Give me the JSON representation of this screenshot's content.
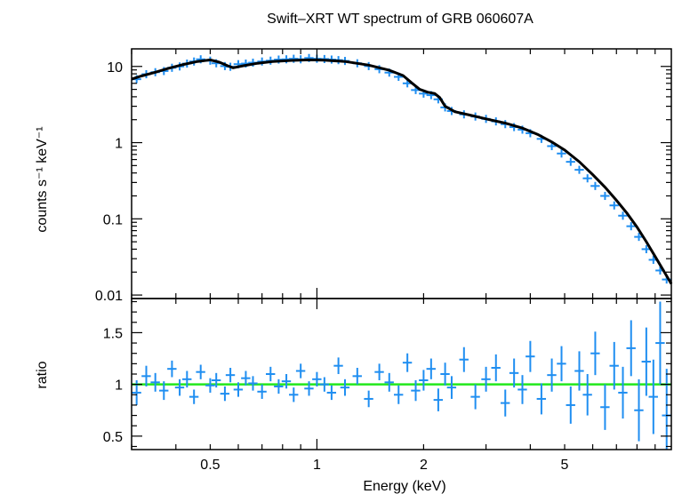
{
  "title": "Swift–XRT WT spectrum of GRB 060607A",
  "colors": {
    "data": "#1f8ef1",
    "model": "#000000",
    "ratio_line": "#22e81c",
    "axes": "#000000"
  },
  "chart_data": [
    {
      "type": "scatter",
      "panel": "spectrum",
      "title": "Swift–XRT WT spectrum of GRB 060607A",
      "xlabel": "",
      "ylabel": "counts s⁻¹ keV⁻¹",
      "xscale": "log",
      "yscale": "log",
      "xlim": [
        0.3,
        10
      ],
      "ylim": [
        0.009,
        17
      ],
      "yticks": [
        {
          "value": 10,
          "label": "10"
        },
        {
          "value": 1,
          "label": "1"
        },
        {
          "value": 0.1,
          "label": "0.1"
        },
        {
          "value": 0.01,
          "label": "0.01"
        }
      ],
      "series": [
        {
          "kind": "data",
          "x": [
            0.31,
            0.33,
            0.35,
            0.37,
            0.39,
            0.41,
            0.43,
            0.45,
            0.47,
            0.5,
            0.52,
            0.55,
            0.57,
            0.6,
            0.63,
            0.66,
            0.7,
            0.74,
            0.78,
            0.82,
            0.86,
            0.9,
            0.95,
            1.0,
            1.05,
            1.1,
            1.15,
            1.2,
            1.3,
            1.4,
            1.5,
            1.6,
            1.7,
            1.8,
            1.9,
            2.0,
            2.1,
            2.2,
            2.3,
            2.4,
            2.6,
            2.8,
            3.0,
            3.2,
            3.4,
            3.6,
            3.8,
            4.0,
            4.3,
            4.6,
            4.9,
            5.2,
            5.5,
            5.8,
            6.1,
            6.5,
            6.9,
            7.3,
            7.7,
            8.1,
            8.5,
            8.9,
            9.3,
            9.7
          ],
          "y": [
            6.8,
            7.9,
            8.4,
            8.7,
            9.6,
            10.0,
            10.9,
            11.6,
            12.4,
            11.9,
            11.0,
            10.1,
            9.9,
            10.7,
            10.9,
            11.2,
            11.6,
            11.9,
            12.3,
            12.4,
            12.6,
            12.4,
            12.9,
            12.6,
            12.5,
            12.3,
            12.1,
            11.8,
            11.0,
            10.1,
            9.2,
            8.3,
            7.3,
            6.0,
            4.9,
            4.4,
            4.2,
            3.7,
            2.9,
            2.6,
            2.35,
            2.2,
            2.05,
            1.9,
            1.75,
            1.6,
            1.48,
            1.33,
            1.12,
            0.9,
            0.72,
            0.56,
            0.44,
            0.34,
            0.27,
            0.2,
            0.15,
            0.11,
            0.08,
            0.058,
            0.04,
            0.029,
            0.021,
            0.016
          ]
        },
        {
          "kind": "model",
          "x": [
            0.3,
            0.32,
            0.35,
            0.38,
            0.42,
            0.46,
            0.5,
            0.53,
            0.56,
            0.58,
            0.62,
            0.68,
            0.75,
            0.85,
            0.95,
            1.05,
            1.2,
            1.4,
            1.6,
            1.75,
            1.85,
            1.95,
            2.05,
            2.15,
            2.22,
            2.3,
            2.45,
            2.7,
            3.0,
            3.4,
            3.8,
            4.2,
            4.6,
            5.0,
            5.5,
            6.0,
            6.5,
            7.0,
            7.5,
            8.0,
            8.5,
            9.0,
            9.5,
            10.0
          ],
          "y": [
            6.8,
            7.5,
            8.4,
            9.4,
            10.6,
            11.6,
            12.2,
            11.4,
            10.2,
            9.6,
            10.2,
            11.0,
            11.6,
            12.0,
            12.2,
            12.1,
            11.6,
            10.4,
            8.9,
            7.6,
            6.1,
            5.0,
            4.6,
            4.4,
            3.9,
            3.0,
            2.55,
            2.3,
            2.05,
            1.8,
            1.55,
            1.28,
            1.02,
            0.8,
            0.56,
            0.38,
            0.26,
            0.175,
            0.118,
            0.078,
            0.05,
            0.032,
            0.021,
            0.014
          ]
        }
      ]
    },
    {
      "type": "scatter",
      "panel": "ratio",
      "xlabel": "Energy (keV)",
      "ylabel": "ratio",
      "xscale": "log",
      "yscale": "linear",
      "xlim": [
        0.3,
        10
      ],
      "ylim": [
        0.37,
        1.83
      ],
      "xticks": [
        {
          "value": 0.5,
          "label": "0.5"
        },
        {
          "value": 1,
          "label": "1"
        },
        {
          "value": 2,
          "label": "2"
        },
        {
          "value": 5,
          "label": "5"
        }
      ],
      "yticks": [
        {
          "value": 0.5,
          "label": "0.5"
        },
        {
          "value": 1,
          "label": "1"
        },
        {
          "value": 1.5,
          "label": "1.5"
        }
      ],
      "reference_line": 1,
      "series": [
        {
          "kind": "data",
          "x": [
            0.31,
            0.33,
            0.35,
            0.37,
            0.39,
            0.41,
            0.43,
            0.45,
            0.47,
            0.5,
            0.52,
            0.55,
            0.57,
            0.6,
            0.63,
            0.66,
            0.7,
            0.74,
            0.78,
            0.82,
            0.86,
            0.9,
            0.95,
            1.0,
            1.05,
            1.1,
            1.15,
            1.2,
            1.3,
            1.4,
            1.5,
            1.6,
            1.7,
            1.8,
            1.9,
            2.0,
            2.1,
            2.2,
            2.3,
            2.4,
            2.6,
            2.8,
            3.0,
            3.2,
            3.4,
            3.6,
            3.8,
            4.0,
            4.3,
            4.6,
            4.9,
            5.2,
            5.5,
            5.8,
            6.1,
            6.5,
            6.9,
            7.3,
            7.7,
            8.1,
            8.5,
            8.9,
            9.3,
            9.7
          ],
          "y": [
            0.92,
            1.08,
            1.02,
            0.94,
            1.15,
            0.97,
            1.05,
            0.88,
            1.12,
            0.99,
            1.04,
            0.91,
            1.09,
            0.95,
            1.06,
            1.01,
            0.93,
            1.1,
            0.98,
            1.03,
            0.9,
            1.13,
            0.96,
            1.05,
            1.0,
            0.92,
            1.18,
            0.97,
            1.08,
            0.86,
            1.12,
            1.02,
            0.9,
            1.21,
            0.94,
            1.04,
            1.15,
            0.85,
            1.1,
            0.97,
            1.24,
            0.88,
            1.05,
            1.16,
            0.82,
            1.11,
            0.95,
            1.27,
            0.86,
            1.09,
            1.2,
            0.8,
            1.13,
            0.9,
            1.3,
            0.78,
            1.18,
            0.92,
            1.35,
            0.75,
            1.22,
            0.88,
            1.4,
            0.7
          ],
          "yerr": [
            0.12,
            0.1,
            0.09,
            0.09,
            0.08,
            0.08,
            0.08,
            0.07,
            0.07,
            0.07,
            0.07,
            0.07,
            0.07,
            0.07,
            0.07,
            0.07,
            0.07,
            0.07,
            0.07,
            0.07,
            0.07,
            0.07,
            0.07,
            0.07,
            0.07,
            0.07,
            0.08,
            0.08,
            0.08,
            0.08,
            0.08,
            0.09,
            0.09,
            0.09,
            0.1,
            0.1,
            0.1,
            0.11,
            0.11,
            0.11,
            0.12,
            0.12,
            0.12,
            0.13,
            0.13,
            0.14,
            0.14,
            0.15,
            0.15,
            0.16,
            0.17,
            0.18,
            0.19,
            0.2,
            0.21,
            0.22,
            0.23,
            0.25,
            0.27,
            0.3,
            0.33,
            0.36,
            0.4,
            0.45
          ]
        }
      ]
    }
  ]
}
